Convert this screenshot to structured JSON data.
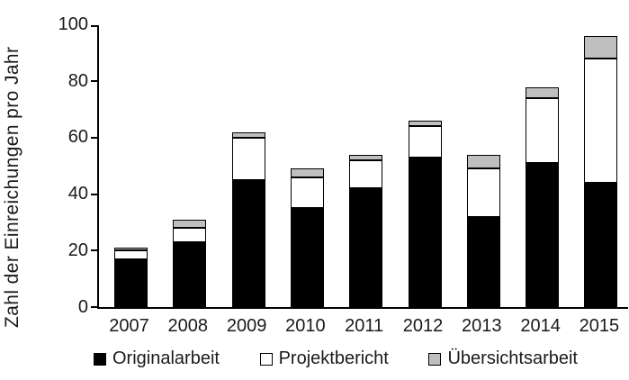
{
  "chart_data": {
    "type": "bar",
    "stacked": true,
    "title": "",
    "xlabel": "",
    "ylabel": "Zahl der Einreichungen pro Jahr",
    "ylim": [
      0,
      100
    ],
    "yticks": [
      0,
      20,
      40,
      60,
      80,
      100
    ],
    "grid": false,
    "legend_position": "bottom",
    "categories": [
      "2007",
      "2008",
      "2009",
      "2010",
      "2011",
      "2012",
      "2013",
      "2014",
      "2015"
    ],
    "series": [
      {
        "name": "Originalarbeit",
        "color": "#000000",
        "values": [
          17,
          23,
          45,
          35,
          42,
          53,
          32,
          51,
          44
        ]
      },
      {
        "name": "Projektbericht",
        "color": "#ffffff",
        "values": [
          3,
          5,
          15,
          11,
          10,
          11,
          17,
          23,
          44
        ]
      },
      {
        "name": "Übersichtsarbeit",
        "color": "#bfbfbf",
        "values": [
          1,
          3,
          2,
          3,
          2,
          2,
          5,
          4,
          8
        ]
      }
    ],
    "totals": [
      21,
      31,
      62,
      49,
      54,
      66,
      54,
      78,
      96
    ]
  },
  "colors": {
    "axis": "#000000",
    "segment_border": "#000000",
    "background": "#ffffff"
  }
}
